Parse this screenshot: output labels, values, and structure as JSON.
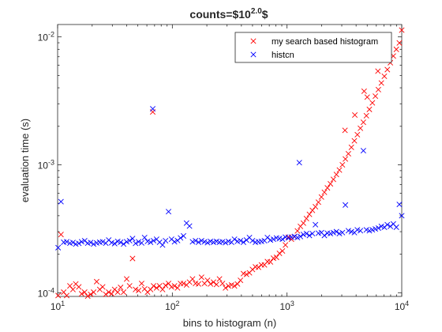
{
  "chart_data": {
    "type": "scatter",
    "title": {
      "base": "counts=$10",
      "exponent": "2.0",
      "suffix": "$"
    },
    "xlabel": "bins to histogram (n)",
    "ylabel": "evaluation time (s)",
    "x_scale": "log",
    "y_scale": "log",
    "xlim": [
      10,
      10000
    ],
    "ylim": [
      9.35e-05,
      0.0125
    ],
    "grid": false,
    "legend_location": "top-right",
    "x_ticks": [
      {
        "value": 10,
        "base": "10",
        "exp": "1"
      },
      {
        "value": 100,
        "base": "10",
        "exp": "2"
      },
      {
        "value": 1000,
        "base": "10",
        "exp": "3"
      },
      {
        "value": 10000,
        "base": "10",
        "exp": "4"
      }
    ],
    "y_ticks": [
      {
        "value": 0.0001,
        "base": "10",
        "exp": "-4"
      },
      {
        "value": 0.001,
        "base": "10",
        "exp": "-3"
      },
      {
        "value": 0.01,
        "base": "10",
        "exp": "-2"
      }
    ],
    "series": [
      {
        "name": "my search based histogram",
        "color": "#ff0000",
        "marker": "x",
        "points": [
          [
            10.1,
            9.5e-05
          ],
          [
            10.7,
            0.000285
          ],
          [
            11.3,
            0.000101
          ],
          [
            12.0,
            9.5e-05
          ],
          [
            12.8,
            0.000113
          ],
          [
            13.6,
            0.000106
          ],
          [
            14.4,
            0.000117
          ],
          [
            15.3,
            0.000111
          ],
          [
            16.2,
            9.8e-05
          ],
          [
            17.2,
            0.000101
          ],
          [
            18.3,
            9.4e-05
          ],
          [
            19.4,
            9.7e-05
          ],
          [
            20.6,
            0.000101
          ],
          [
            21.9,
            0.000122
          ],
          [
            23.3,
            0.000106
          ],
          [
            24.7,
            0.000111
          ],
          [
            26.3,
            9.7e-05
          ],
          [
            27.9,
            0.000101
          ],
          [
            29.6,
            9.8e-05
          ],
          [
            31.4,
            0.000106
          ],
          [
            33.4,
            0.000101
          ],
          [
            35.4,
            0.00011
          ],
          [
            37.6,
            0.000101
          ],
          [
            40.0,
            0.000128
          ],
          [
            42.4,
            0.000113
          ],
          [
            45.0,
            0.000185
          ],
          [
            47.8,
            0.000106
          ],
          [
            50.8,
            0.000104
          ],
          [
            54.0,
            0.000118
          ],
          [
            57.3,
            0.000107
          ],
          [
            60.8,
            0.000101
          ],
          [
            64.6,
            0.000106
          ],
          [
            67.5,
            0.00259
          ],
          [
            68.6,
            0.000113
          ],
          [
            72.9,
            0.000109
          ],
          [
            77.4,
            0.000113
          ],
          [
            82.2,
            0.000106
          ],
          [
            87.3,
            0.000114
          ],
          [
            92.7,
            0.000118
          ],
          [
            98.4,
            0.000111
          ],
          [
            104.5,
            0.000113
          ],
          [
            111.0,
            0.000109
          ],
          [
            117.9,
            0.000118
          ],
          [
            125.2,
            0.000118
          ],
          [
            133.0,
            0.000115
          ],
          [
            141.2,
            0.000121
          ],
          [
            150.0,
            0.000128
          ],
          [
            159.3,
            0.000118
          ],
          [
            169.2,
            0.000117
          ],
          [
            179.7,
            0.000132
          ],
          [
            190.8,
            0.000118
          ],
          [
            202.6,
            0.000125
          ],
          [
            215.2,
            0.000117
          ],
          [
            228.5,
            0.000121
          ],
          [
            242.7,
            0.000116
          ],
          [
            257.7,
            0.000128
          ],
          [
            273.7,
            0.000118
          ],
          [
            290.7,
            0.000109
          ],
          [
            308.7,
            0.000113
          ],
          [
            327.9,
            0.000115
          ],
          [
            348.2,
            0.000113
          ],
          [
            369.8,
            0.000117
          ],
          [
            392.7,
            0.000125
          ],
          [
            417.1,
            0.000141
          ],
          [
            442.9,
            0.000139
          ],
          [
            470.4,
            0.000143
          ],
          [
            499.6,
            0.000152
          ],
          [
            530.6,
            0.000159
          ],
          [
            563.5,
            0.000158
          ],
          [
            598.4,
            0.000165
          ],
          [
            635.5,
            0.000165
          ],
          [
            674.9,
            0.000175
          ],
          [
            716.8,
            0.000174
          ],
          [
            761.2,
            0.000186
          ],
          [
            808.4,
            0.000189
          ],
          [
            858.5,
            0.000203
          ],
          [
            911.8,
            0.000212
          ],
          [
            968.3,
            0.000236
          ],
          [
            1028,
            0.000272
          ],
          [
            1092,
            0.000262
          ],
          [
            1160,
            0.000274
          ],
          [
            1232,
            0.000304
          ],
          [
            1308,
            0.00033
          ],
          [
            1389,
            0.00035
          ],
          [
            1476,
            0.00038
          ],
          [
            1567,
            0.00041
          ],
          [
            1664,
            0.00044
          ],
          [
            1768,
            0.00047
          ],
          [
            1877,
            0.00051
          ],
          [
            1994,
            0.00056
          ],
          [
            2117,
            0.00061
          ],
          [
            2249,
            0.00066
          ],
          [
            2388,
            0.00071
          ],
          [
            2536,
            0.00077
          ],
          [
            2694,
            0.00084
          ],
          [
            2861,
            0.00091
          ],
          [
            3038,
            0.001
          ],
          [
            3226,
            0.00111
          ],
          [
            3427,
            0.00122
          ],
          [
            3639,
            0.00137
          ],
          [
            3865,
            0.00154
          ],
          [
            4104,
            0.00172
          ],
          [
            4359,
            0.00193
          ],
          [
            4629,
            0.00215
          ],
          [
            4917,
            0.00242
          ],
          [
            5222,
            0.00271
          ],
          [
            5545,
            0.00305
          ],
          [
            5889,
            0.00344
          ],
          [
            6254,
            0.00387
          ],
          [
            6642,
            0.00436
          ],
          [
            7054,
            0.00492
          ],
          [
            7491,
            0.00555
          ],
          [
            7956,
            0.00628
          ],
          [
            8449,
            0.00709
          ],
          [
            8973,
            0.00799
          ],
          [
            9529,
            0.00897
          ],
          [
            10000,
            0.0113
          ],
          [
            3200,
            0.00186
          ],
          [
            3900,
            0.00245
          ],
          [
            4700,
            0.00376
          ],
          [
            5000,
            0.00338
          ],
          [
            6200,
            0.0054
          ]
        ]
      },
      {
        "name": "histcn",
        "color": "#0000ff",
        "marker": "x",
        "points": [
          [
            10.1,
            0.000225
          ],
          [
            10.7,
            0.000515
          ],
          [
            11.3,
            0.000248
          ],
          [
            12.0,
            0.00025
          ],
          [
            12.8,
            0.000244
          ],
          [
            13.6,
            0.000247
          ],
          [
            14.4,
            0.00024
          ],
          [
            15.3,
            0.000243
          ],
          [
            16.2,
            0.00025
          ],
          [
            17.2,
            0.000255
          ],
          [
            18.3,
            0.000244
          ],
          [
            19.4,
            0.000247
          ],
          [
            20.6,
            0.00024
          ],
          [
            21.9,
            0.000245
          ],
          [
            23.3,
            0.000248
          ],
          [
            24.7,
            0.00025
          ],
          [
            26.3,
            0.000244
          ],
          [
            27.9,
            0.000258
          ],
          [
            29.6,
            0.000246
          ],
          [
            31.4,
            0.000242
          ],
          [
            33.4,
            0.000252
          ],
          [
            35.4,
            0.000248
          ],
          [
            37.6,
            0.00024
          ],
          [
            40.0,
            0.00025
          ],
          [
            42.4,
            0.000255
          ],
          [
            45.0,
            0.000265
          ],
          [
            47.8,
            0.000243
          ],
          [
            50.8,
            0.00025
          ],
          [
            54.0,
            0.000245
          ],
          [
            57.3,
            0.00027
          ],
          [
            60.8,
            0.000252
          ],
          [
            64.6,
            0.000248
          ],
          [
            67.5,
            0.00274
          ],
          [
            68.6,
            0.000255
          ],
          [
            72.9,
            0.000262
          ],
          [
            77.4,
            0.000248
          ],
          [
            82.2,
            0.000236
          ],
          [
            87.3,
            0.000255
          ],
          [
            92.7,
            0.00043
          ],
          [
            98.4,
            0.000262
          ],
          [
            104.5,
            0.00025
          ],
          [
            111.0,
            0.000256
          ],
          [
            117.9,
            0.000268
          ],
          [
            125.2,
            0.000278
          ],
          [
            133.0,
            0.00035
          ],
          [
            141.2,
            0.000332
          ],
          [
            150.0,
            0.00025
          ],
          [
            159.3,
            0.000255
          ],
          [
            169.2,
            0.000248
          ],
          [
            179.7,
            0.000255
          ],
          [
            190.8,
            0.00025
          ],
          [
            202.6,
            0.000246
          ],
          [
            215.2,
            0.000252
          ],
          [
            228.5,
            0.000248
          ],
          [
            242.7,
            0.000252
          ],
          [
            257.7,
            0.000248
          ],
          [
            273.7,
            0.00025
          ],
          [
            290.7,
            0.000246
          ],
          [
            308.7,
            0.000252
          ],
          [
            327.9,
            0.000248
          ],
          [
            348.2,
            0.000262
          ],
          [
            369.8,
            0.000252
          ],
          [
            392.7,
            0.000255
          ],
          [
            417.1,
            0.000248
          ],
          [
            442.9,
            0.000258
          ],
          [
            470.4,
            0.00027
          ],
          [
            499.6,
            0.000255
          ],
          [
            530.6,
            0.000248
          ],
          [
            563.5,
            0.00025
          ],
          [
            598.4,
            0.000252
          ],
          [
            635.5,
            0.000255
          ],
          [
            674.9,
            0.00027
          ],
          [
            716.8,
            0.000258
          ],
          [
            761.2,
            0.000262
          ],
          [
            808.4,
            0.000268
          ],
          [
            858.5,
            0.000265
          ],
          [
            911.8,
            0.000262
          ],
          [
            968.3,
            0.000272
          ],
          [
            1028,
            0.000268
          ],
          [
            1092,
            0.000272
          ],
          [
            1160,
            0.000275
          ],
          [
            1232,
            0.00027
          ],
          [
            1280,
            0.00104
          ],
          [
            1308,
            0.000275
          ],
          [
            1389,
            0.000285
          ],
          [
            1476,
            0.00029
          ],
          [
            1567,
            0.00028
          ],
          [
            1664,
            0.00029
          ],
          [
            1768,
            0.00034
          ],
          [
            1877,
            0.000292
          ],
          [
            1994,
            0.000295
          ],
          [
            2117,
            0.00028
          ],
          [
            2249,
            0.000292
          ],
          [
            2388,
            0.00029
          ],
          [
            2536,
            0.000295
          ],
          [
            2694,
            0.0003
          ],
          [
            2861,
            0.00029
          ],
          [
            3038,
            0.000295
          ],
          [
            3226,
            0.000485
          ],
          [
            3427,
            0.000305
          ],
          [
            3639,
            0.0003
          ],
          [
            3865,
            0.000295
          ],
          [
            4104,
            0.00031
          ],
          [
            4359,
            0.000305
          ],
          [
            4629,
            0.00129
          ],
          [
            4917,
            0.00031
          ],
          [
            5222,
            0.000305
          ],
          [
            5545,
            0.00031
          ],
          [
            5889,
            0.000315
          ],
          [
            6254,
            0.00032
          ],
          [
            6642,
            0.00033
          ],
          [
            7054,
            0.000325
          ],
          [
            7491,
            0.00034
          ],
          [
            7956,
            0.00033
          ],
          [
            8449,
            0.000345
          ],
          [
            8973,
            0.000325
          ],
          [
            9529,
            0.00049
          ],
          [
            10000,
            0.0004
          ]
        ]
      }
    ]
  }
}
